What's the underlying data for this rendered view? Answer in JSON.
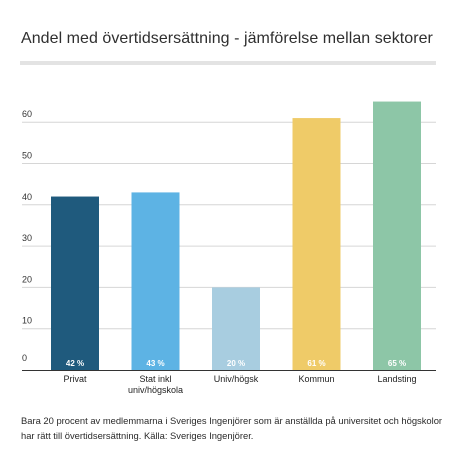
{
  "chart_data": {
    "type": "bar",
    "title": "Andel med övertidsersättning - jämförelse mellan  sektorer",
    "categories": [
      "Privat",
      "Stat inkl\nuniv/högskola",
      "Univ/högsk",
      "Kommun",
      "Landsting"
    ],
    "values": [
      42,
      43,
      20,
      61,
      65
    ],
    "value_labels": [
      "42 %",
      "43 %",
      "20 %",
      "61 %",
      "65 %"
    ],
    "colors": [
      "#1f5a7d",
      "#5db3e4",
      "#a8cde0",
      "#efcb68",
      "#8dc6a7"
    ],
    "ylim": [
      0,
      67
    ],
    "yticks": [
      0,
      10,
      20,
      30,
      40,
      50,
      60
    ],
    "xlabel": "",
    "ylabel": "",
    "grid": true,
    "legend": "none"
  },
  "caption": "Bara 20 procent av medlemmarna i Sveriges Ingenjörer som är anställda på universitet och högskolor har rätt till övertidsersättning. Källa: Sveriges Ingenjörer."
}
